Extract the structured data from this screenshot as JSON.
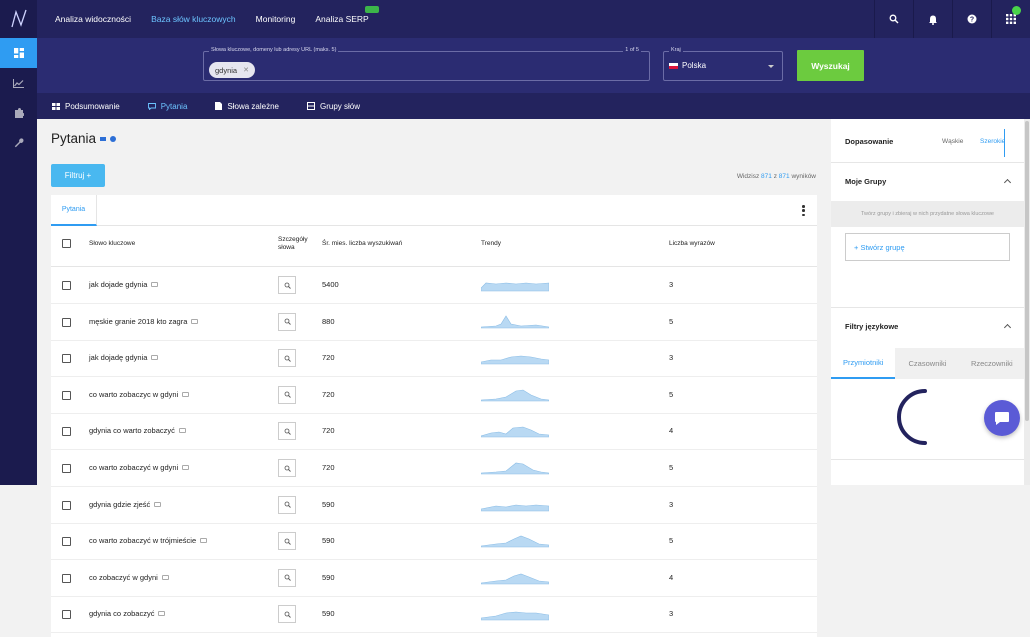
{
  "topnav": {
    "links": [
      "Analiza widoczności",
      "Baza słów kluczowych",
      "Monitoring",
      "Analiza SERP"
    ],
    "active_index": 1
  },
  "search": {
    "keywords_legend": "Słowa kluczowe, domeny lub adresy URL (maks. 5)",
    "counter": "1 of 5",
    "chip": "gdynia",
    "country_legend": "Kraj",
    "country": "Polska",
    "button": "Wyszukaj"
  },
  "subtabs": [
    "Podsumowanie",
    "Pytania",
    "Słowa zależne",
    "Grupy słów"
  ],
  "page": {
    "title": "Pytania",
    "filter_button": "Filtruj +",
    "results_prefix": "Widzisz",
    "results_shown": "871",
    "results_of": "z",
    "results_total": "871",
    "results_suffix": "wyników"
  },
  "table": {
    "tab": "Pytania",
    "headers": {
      "keyword": "Słowo kluczowe",
      "details_1": "Szczegóły",
      "details_2": "słowa",
      "volume": "Śr. mies. liczba wyszukiwań",
      "trends": "Trendy",
      "words": "Liczba wyrazów"
    },
    "rows": [
      {
        "keyword": "jak dojade gdynia",
        "volume": "5400",
        "words": "3"
      },
      {
        "keyword": "męskie granie 2018 kto zagra",
        "volume": "880",
        "words": "5"
      },
      {
        "keyword": "jak dojadę gdynia",
        "volume": "720",
        "words": "3"
      },
      {
        "keyword": "co warto zobaczyc w gdyni",
        "volume": "720",
        "words": "5"
      },
      {
        "keyword": "gdynia co warto zobaczyć",
        "volume": "720",
        "words": "4"
      },
      {
        "keyword": "co warto zobaczyć w gdyni",
        "volume": "720",
        "words": "5"
      },
      {
        "keyword": "gdynia gdzie zjeść",
        "volume": "590",
        "words": "3"
      },
      {
        "keyword": "co warto zobaczyć w trójmieście",
        "volume": "590",
        "words": "5"
      },
      {
        "keyword": "co zobaczyć w gdyni",
        "volume": "590",
        "words": "4"
      },
      {
        "keyword": "gdynia co zobaczyć",
        "volume": "590",
        "words": "3"
      }
    ]
  },
  "right_panel": {
    "match_label": "Dopasowanie",
    "match_narrow": "Wąskie",
    "match_broad": "Szerokie",
    "groups_title": "Moje Grupy",
    "groups_hint": "Twórz grupy i zbieraj w nich przydatne słowa kluczowe",
    "create_group": "+ Stwórz grupę",
    "lang_filters_title": "Filtry językowe",
    "lang_tabs": [
      "Przymiotniki",
      "Czasowniki",
      "Rzeczowniki"
    ]
  },
  "colors": {
    "navbar": "#23235e",
    "search_band": "#2b2c72",
    "accent": "#2f9cf2",
    "search_button": "#6ccb3f",
    "trend_fill": "#b9d9f3"
  },
  "icons": [
    "logo-icon",
    "search-icon",
    "bell-icon",
    "help-icon",
    "apps-grid-icon",
    "dashboard-icon",
    "chart-icon",
    "puzzle-icon",
    "wrench-icon",
    "chat-icon"
  ]
}
